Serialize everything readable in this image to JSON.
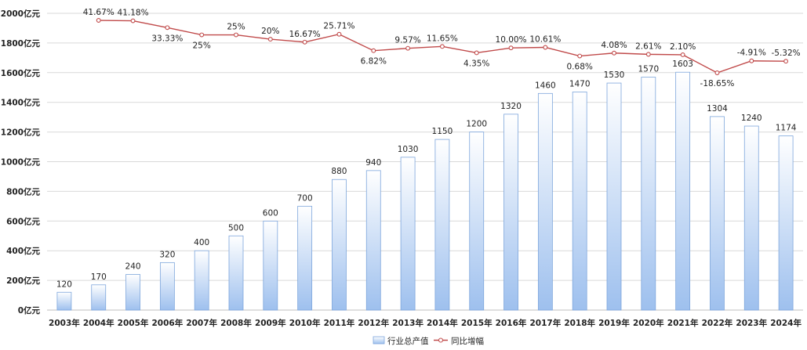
{
  "chart_data": {
    "type": "bar",
    "categories": [
      "2003年",
      "2004年",
      "2005年",
      "2006年",
      "2007年",
      "2008年",
      "2009年",
      "2010年",
      "2011年",
      "2012年",
      "2013年",
      "2014年",
      "2015年",
      "2016年",
      "2017年",
      "2018年",
      "2019年",
      "2020年",
      "2021年",
      "2022年",
      "2023年",
      "2024年"
    ],
    "ylim": [
      0,
      2000
    ],
    "y_ticks": [
      "0亿元",
      "200亿元",
      "400亿元",
      "600亿元",
      "800亿元",
      "1000亿元",
      "1200亿元",
      "1400亿元",
      "1600亿元",
      "1800亿元",
      "2000亿元"
    ],
    "grid": true,
    "legend_position": "bottom",
    "series": [
      {
        "name": "行业总产值",
        "type": "bar",
        "values": [
          120,
          170,
          240,
          320,
          400,
          500,
          600,
          700,
          880,
          940,
          1030,
          1150,
          1200,
          1320,
          1460,
          1470,
          1530,
          1570,
          1603,
          1304,
          1240,
          1174
        ],
        "labels": [
          "120",
          "170",
          "240",
          "320",
          "400",
          "500",
          "600",
          "700",
          "880",
          "940",
          "1030",
          "1150",
          "1200",
          "1320",
          "1460",
          "1470",
          "1530",
          "1570",
          "1603",
          "1304",
          "1240",
          "1174"
        ]
      },
      {
        "name": "同比增幅",
        "type": "line",
        "values": [
          null,
          41.67,
          41.18,
          33.33,
          25,
          25,
          20,
          16.67,
          25.71,
          6.82,
          9.57,
          11.65,
          4.35,
          10.0,
          10.61,
          0.68,
          4.08,
          2.61,
          2.1,
          -18.65,
          -4.91,
          -5.32
        ],
        "labels": [
          "",
          "41.67%",
          "41.18%",
          "33.33%",
          "25%",
          "25%",
          "20%",
          "16.67%",
          "25.71%",
          "6.82%",
          "9.57%",
          "11.65%",
          "4.35%",
          "10.00%",
          "10.61%",
          "0.68%",
          "4.08%",
          "2.61%",
          "2.10%",
          "-18.65%",
          "-4.91%",
          "-5.32%"
        ]
      }
    ],
    "colors": {
      "bar_top": "#ffffff",
      "bar_bottom": "#9ec0ee",
      "bar_stroke": "#7ea6dc",
      "line": "#c04a4a",
      "marker_fill": "#ffffff",
      "grid": "#d9d9d9",
      "axis": "#bfbfbf"
    }
  }
}
